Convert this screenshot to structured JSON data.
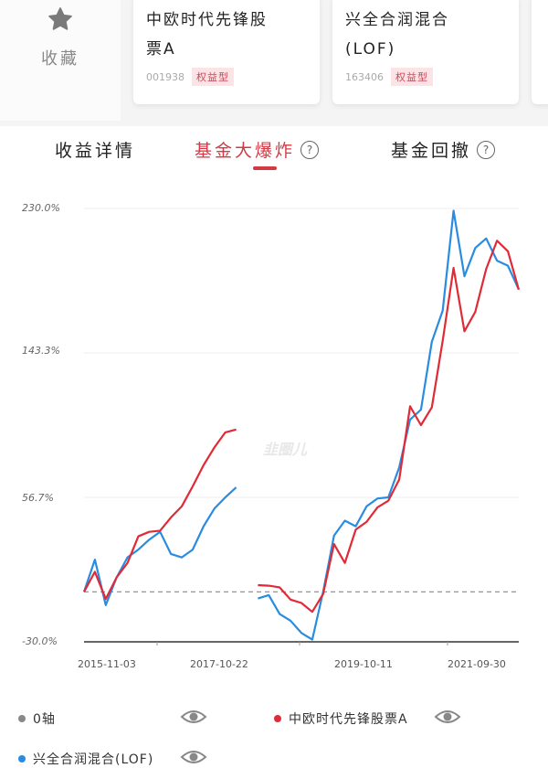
{
  "favorite": {
    "label": "收藏",
    "icon": "star-icon"
  },
  "fund_cards": [
    {
      "name_line1": "中欧时代先锋股",
      "name_line2": "票A",
      "code": "001938",
      "tag": "权益型"
    },
    {
      "name_line1": "兴全合润混合",
      "name_line2": "(LOF)",
      "code": "163406",
      "tag": "权益型"
    }
  ],
  "tabs": [
    {
      "label": "收益详情",
      "active": false,
      "help": false
    },
    {
      "label": "基金大爆炸",
      "active": true,
      "help": true,
      "help_label": "?"
    },
    {
      "label": "基金回撤",
      "active": false,
      "help": true,
      "help_label": "?"
    }
  ],
  "watermark": "韭圈儿",
  "colors": {
    "accent": "#d33a44",
    "series_red": "#e02a36",
    "series_blue": "#2a8ce0",
    "zero_axis": "#888888"
  },
  "legend": [
    {
      "label": "0轴",
      "color": "#888888",
      "visible": true
    },
    {
      "label": "中欧时代先锋股票A",
      "color": "#e02a36",
      "visible": true
    },
    {
      "label": "兴全合润混合(LOF)",
      "color": "#2a8ce0",
      "visible": true
    }
  ],
  "chart_data": {
    "type": "line",
    "title": "",
    "xlabel": "",
    "ylabel": "",
    "y_ticks": [
      "230.0%",
      "143.3%",
      "56.7%",
      "-30.0%"
    ],
    "ylim": [
      -30.0,
      230.0
    ],
    "x_ticks": [
      "2015-11-03",
      "2017-10-22",
      "2019-10-11",
      "2021-09-30"
    ],
    "xlim": [
      "2015-11-03",
      "2022-03-01"
    ],
    "grid": true,
    "legend_position": "bottom",
    "zero_line": {
      "value": 0,
      "style": "dashed"
    },
    "note": "Cumulative return % with resets ('fund explosion' segments); values approximated from pixels.",
    "x": [
      "2015-11",
      "2015-12",
      "2016-01",
      "2016-02",
      "2016-04",
      "2016-06",
      "2016-08",
      "2016-10",
      "2016-12",
      "2017-02",
      "2017-04",
      "2017-06",
      "2017-08",
      "2017-10",
      "2017-12",
      "2018-01",
      "2018-03",
      "2018-05",
      "2018-07",
      "2018-09",
      "2018-11",
      "2019-01",
      "2019-02",
      "2019-04",
      "2019-06",
      "2019-08",
      "2019-10",
      "2019-12",
      "2020-02",
      "2020-04",
      "2020-06",
      "2020-08",
      "2020-10",
      "2020-12",
      "2021-02",
      "2021-04",
      "2021-06",
      "2021-08",
      "2021-10",
      "2021-12",
      "2022-02"
    ],
    "series": [
      {
        "name": "中欧时代先锋股票A",
        "color": "#e02a36",
        "values": [
          0,
          12,
          -3,
          8,
          18,
          32,
          36,
          38,
          44,
          52,
          62,
          76,
          88,
          95,
          98,
          null,
          4,
          5,
          2,
          -4,
          -8,
          -12,
          0,
          28,
          18,
          36,
          42,
          52,
          54,
          68,
          110,
          100,
          112,
          150,
          195,
          155,
          168,
          195,
          210,
          205,
          180
        ]
      },
      {
        "name": "兴全合润混合(LOF)",
        "color": "#2a8ce0",
        "values": [
          0,
          18,
          -8,
          10,
          20,
          26,
          30,
          36,
          24,
          20,
          26,
          38,
          50,
          58,
          62,
          null,
          -4,
          -2,
          -12,
          -18,
          -24,
          -30,
          0,
          35,
          42,
          40,
          50,
          56,
          58,
          74,
          104,
          108,
          150,
          170,
          228,
          190,
          205,
          212,
          200,
          195,
          182
        ]
      }
    ]
  }
}
